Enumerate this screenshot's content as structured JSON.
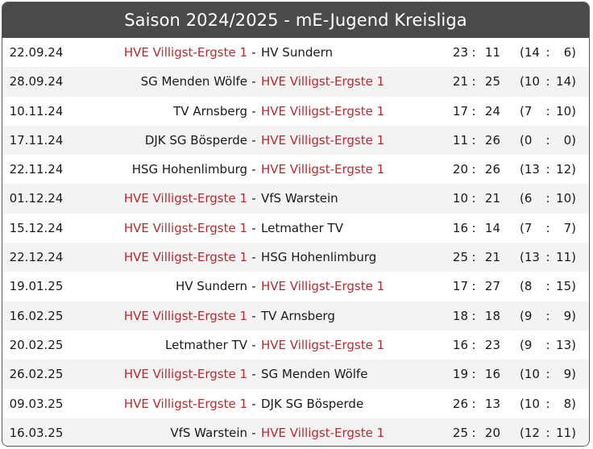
{
  "title": "Saison 2024/2025 - mE-Jugend Kreisliga",
  "highlight_team": "HVE Villigst-Ergste 1",
  "colors": {
    "header_bg": "#4a4a4a",
    "highlight": "#c0272d",
    "row_alt": "#f3f3f3"
  },
  "dash": "-",
  "colon": ":",
  "games": [
    {
      "date": "22.09.24",
      "home": "HVE Villigst-Ergste 1",
      "away": "HV Sundern",
      "score_home": "23",
      "score_away": "11",
      "half_home": "(14",
      "half_away": "6)"
    },
    {
      "date": "28.09.24",
      "home": "SG Menden Wölfe",
      "away": "HVE Villigst-Ergste 1",
      "score_home": "21",
      "score_away": "25",
      "half_home": "(10",
      "half_away": "14)"
    },
    {
      "date": "10.11.24",
      "home": "TV Arnsberg",
      "away": "HVE Villigst-Ergste 1",
      "score_home": "17",
      "score_away": "24",
      "half_home": "(7",
      "half_away": "10)"
    },
    {
      "date": "17.11.24",
      "home": "DJK SG Bösperde",
      "away": "HVE Villigst-Ergste 1",
      "score_home": "11",
      "score_away": "26",
      "half_home": "(0",
      "half_away": "0)"
    },
    {
      "date": "22.11.24",
      "home": "HSG Hohenlimburg",
      "away": "HVE Villigst-Ergste 1",
      "score_home": "20",
      "score_away": "26",
      "half_home": "(13",
      "half_away": "12)"
    },
    {
      "date": "01.12.24",
      "home": "HVE Villigst-Ergste 1",
      "away": "VfS Warstein",
      "score_home": "10",
      "score_away": "21",
      "half_home": "(6",
      "half_away": "10)"
    },
    {
      "date": "15.12.24",
      "home": "HVE Villigst-Ergste 1",
      "away": "Letmather TV",
      "score_home": "16",
      "score_away": "14",
      "half_home": "(7",
      "half_away": "7)"
    },
    {
      "date": "22.12.24",
      "home": "HVE Villigst-Ergste 1",
      "away": "HSG Hohenlimburg",
      "score_home": "25",
      "score_away": "21",
      "half_home": "(13",
      "half_away": "11)"
    },
    {
      "date": "19.01.25",
      "home": "HV Sundern",
      "away": "HVE Villigst-Ergste 1",
      "score_home": "17",
      "score_away": "27",
      "half_home": "(8",
      "half_away": "15)"
    },
    {
      "date": "16.02.25",
      "home": "HVE Villigst-Ergste 1",
      "away": "TV Arnsberg",
      "score_home": "18",
      "score_away": "18",
      "half_home": "(9",
      "half_away": "9)"
    },
    {
      "date": "20.02.25",
      "home": "Letmather TV",
      "away": "HVE Villigst-Ergste 1",
      "score_home": "16",
      "score_away": "23",
      "half_home": "(9",
      "half_away": "13)"
    },
    {
      "date": "26.02.25",
      "home": "HVE Villigst-Ergste 1",
      "away": "SG Menden Wölfe",
      "score_home": "19",
      "score_away": "16",
      "half_home": "(10",
      "half_away": "9)"
    },
    {
      "date": "09.03.25",
      "home": "HVE Villigst-Ergste 1",
      "away": "DJK SG Bösperde",
      "score_home": "26",
      "score_away": "13",
      "half_home": "(10",
      "half_away": "8)"
    },
    {
      "date": "16.03.25",
      "home": "VfS Warstein",
      "away": "HVE Villigst-Ergste 1",
      "score_home": "25",
      "score_away": "20",
      "half_home": "(12",
      "half_away": "11)"
    }
  ]
}
